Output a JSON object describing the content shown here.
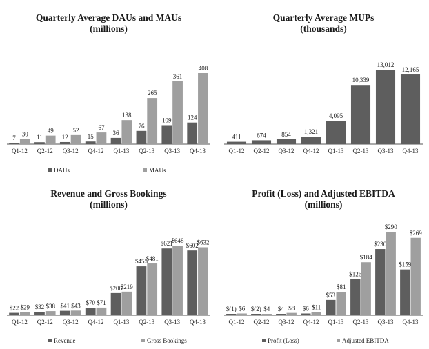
{
  "colors": {
    "dark": "#5e5e5e",
    "light": "#9f9f9f",
    "axis": "#555555"
  },
  "chart_data": [
    {
      "id": "dau-mau",
      "type": "bar",
      "title": [
        "Quarterly Average DAUs and MAUs",
        "(millions)"
      ],
      "categories": [
        "Q1-12",
        "Q2-12",
        "Q3-12",
        "Q4-12",
        "Q1-13",
        "Q2-13",
        "Q3-13",
        "Q4-13"
      ],
      "series": [
        {
          "name": "DAUs",
          "values": [
            7,
            11,
            12,
            15,
            36,
            76,
            109,
            124
          ],
          "labels": [
            "7",
            "11",
            "12",
            "15",
            "36",
            "76",
            "109",
            "124"
          ]
        },
        {
          "name": "MAUs",
          "values": [
            30,
            49,
            52,
            67,
            138,
            265,
            361,
            408
          ],
          "labels": [
            "30",
            "49",
            "52",
            "67",
            "138",
            "265",
            "361",
            "408"
          ]
        }
      ],
      "ylim": [
        0,
        408
      ],
      "legend": "bottom"
    },
    {
      "id": "mups",
      "type": "bar",
      "title": [
        "Quarterly Average MUPs",
        "(thousands)"
      ],
      "categories": [
        "Q1-12",
        "Q2-12",
        "Q3-12",
        "Q4-12",
        "Q1-13",
        "Q2-13",
        "Q3-13",
        "Q4-13"
      ],
      "series": [
        {
          "name": "MUPs",
          "values": [
            411,
            674,
            854,
            1321,
            4095,
            10339,
            13012,
            12165
          ],
          "labels": [
            "411",
            "674",
            "854",
            "1,321",
            "4,095",
            "10,339",
            "13,012",
            "12,165"
          ]
        }
      ],
      "ylim": [
        0,
        13012
      ],
      "legend": "none"
    },
    {
      "id": "revenue",
      "type": "bar",
      "title": [
        "Revenue and Gross Bookings",
        "(millions)"
      ],
      "categories": [
        "Q1-12",
        "Q2-12",
        "Q3-12",
        "Q4-12",
        "Q1-13",
        "Q2-13",
        "Q3-13",
        "Q4-13"
      ],
      "series": [
        {
          "name": "Revenue",
          "values": [
            22,
            32,
            41,
            70,
            206,
            455,
            621,
            602
          ],
          "labels": [
            "$22",
            "$32",
            "$41",
            "$70",
            "$206",
            "$455",
            "$621",
            "$602"
          ]
        },
        {
          "name": "Gross Bookings",
          "values": [
            29,
            38,
            43,
            71,
            219,
            481,
            648,
            632
          ],
          "labels": [
            "$29",
            "$38",
            "$43",
            "$71",
            "$219",
            "$481",
            "$648",
            "$632"
          ]
        }
      ],
      "ylim": [
        0,
        648
      ],
      "legend": "bottom"
    },
    {
      "id": "profit",
      "type": "bar",
      "title": [
        "Profit (Loss) and Adjusted EBITDA",
        "(millions)"
      ],
      "categories": [
        "Q1-12",
        "Q2-12",
        "Q3-12",
        "Q4-12",
        "Q1-13",
        "Q2-13",
        "Q3-13",
        "Q4-13"
      ],
      "series": [
        {
          "name": "Profit (Loss)",
          "values": [
            -1,
            -2,
            4,
            6,
            53,
            126,
            230,
            159
          ],
          "labels": [
            "$(1)",
            "$(2)",
            "$4",
            "$6",
            "$53",
            "$126",
            "$230",
            "$159"
          ]
        },
        {
          "name": "Adjusted EBITDA",
          "values": [
            6,
            4,
            8,
            11,
            81,
            184,
            290,
            269
          ],
          "labels": [
            "$6",
            "$4",
            "$8",
            "$11",
            "$81",
            "$184",
            "$290",
            "$269"
          ]
        }
      ],
      "ylim": [
        0,
        290
      ],
      "legend": "bottom"
    }
  ]
}
